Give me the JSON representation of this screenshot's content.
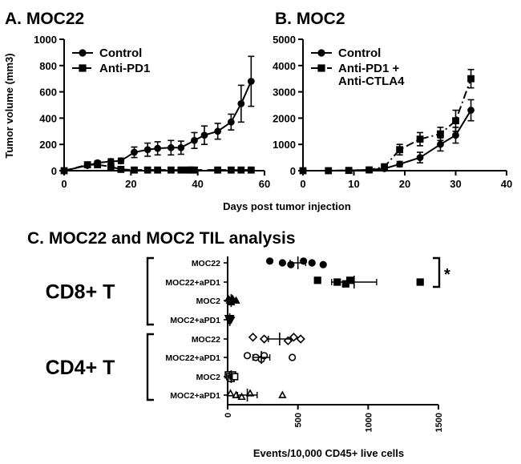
{
  "chart_data": [
    {
      "panel": "A",
      "type": "line",
      "title": "A. MOC22",
      "ylabel": "Tumor volume (mm3)",
      "xlim": [
        0,
        60
      ],
      "ylim": [
        0,
        1000
      ],
      "xticks": [
        0,
        20,
        40,
        60
      ],
      "yticks": [
        0,
        200,
        400,
        600,
        800,
        1000
      ],
      "legend_position": "top-left",
      "series": [
        {
          "name": "Control",
          "style": "solid",
          "marker": "circle",
          "x": [
            0,
            7,
            10,
            14,
            17,
            21,
            25,
            28,
            32,
            35,
            39,
            42,
            46,
            50,
            53,
            56
          ],
          "y": [
            0,
            40,
            60,
            70,
            75,
            140,
            160,
            170,
            175,
            175,
            230,
            270,
            300,
            370,
            510,
            680
          ],
          "err": [
            0,
            15,
            15,
            20,
            20,
            40,
            50,
            50,
            55,
            50,
            60,
            70,
            60,
            60,
            140,
            190
          ]
        },
        {
          "name": "Anti-PD1",
          "style": "dashed",
          "marker": "square",
          "x": [
            0,
            7,
            10,
            14,
            17,
            21,
            25,
            28,
            32,
            35,
            37,
            38,
            39,
            46,
            50,
            53,
            56
          ],
          "y": [
            0,
            45,
            45,
            30,
            10,
            5,
            5,
            5,
            5,
            5,
            5,
            5,
            5,
            5,
            5,
            5,
            5
          ],
          "err": [
            0,
            10,
            10,
            10,
            5,
            3,
            2,
            2,
            2,
            2,
            2,
            2,
            2,
            2,
            2,
            2,
            2
          ]
        }
      ]
    },
    {
      "panel": "B",
      "type": "line",
      "title": "B. MOC2",
      "xlim": [
        0,
        40
      ],
      "ylim": [
        0,
        5000
      ],
      "xticks": [
        0,
        10,
        20,
        30,
        40
      ],
      "yticks": [
        0,
        1000,
        2000,
        3000,
        4000,
        5000
      ],
      "legend_position": "top-left",
      "series": [
        {
          "name": "Control",
          "style": "solid",
          "marker": "circle",
          "x": [
            0,
            5,
            9,
            13,
            16,
            19,
            23,
            27,
            30,
            33
          ],
          "y": [
            0,
            0,
            10,
            30,
            80,
            250,
            500,
            1000,
            1350,
            2300
          ],
          "err": [
            0,
            0,
            5,
            10,
            30,
            100,
            200,
            250,
            300,
            400
          ]
        },
        {
          "name": "Anti-PD1 + Anti-CTLA4",
          "style": "dashdot",
          "marker": "square",
          "x": [
            0,
            5,
            9,
            13,
            16,
            19,
            23,
            27,
            30,
            33
          ],
          "y": [
            0,
            0,
            10,
            30,
            150,
            800,
            1200,
            1400,
            1900,
            3500
          ],
          "err": [
            0,
            0,
            5,
            10,
            80,
            200,
            250,
            250,
            400,
            350
          ]
        }
      ]
    },
    {
      "panel": "C",
      "type": "scatter",
      "title": "C. MOC22 and MOC2 TIL analysis",
      "xlabel": "Events/10,000 CD45+ live cells",
      "xlim": [
        0,
        1500
      ],
      "xticks": [
        0,
        500,
        1000,
        1500
      ],
      "groups": [
        {
          "label": "CD8+ T",
          "significance": "*",
          "categories": [
            "MOC22",
            "MOC22+aPD1",
            "MOC2",
            "MOC2+aPD1"
          ]
        },
        {
          "label": "CD4+ T",
          "categories": [
            "MOC22",
            "MOC22+aPD1",
            "MOC2",
            "MOC2+aPD1"
          ]
        }
      ],
      "rows": [
        {
          "group": "CD8+ T",
          "category": "MOC22",
          "marker": "circle-filled",
          "points": [
            300,
            390,
            450,
            540,
            600,
            680
          ],
          "mean": 500,
          "sem": 55
        },
        {
          "group": "CD8+ T",
          "category": "MOC22+aPD1",
          "marker": "square-filled",
          "points": [
            640,
            780,
            840,
            870,
            1370
          ],
          "mean": 900,
          "sem": 160
        },
        {
          "group": "CD8+ T",
          "category": "MOC2",
          "marker": "triangle-filled",
          "points": [
            5,
            15,
            25,
            35,
            60
          ],
          "mean": 25,
          "sem": 10
        },
        {
          "group": "CD8+ T",
          "category": "MOC2+aPD1",
          "marker": "triangle-down-filled",
          "points": [
            5,
            10,
            15,
            20,
            25
          ],
          "mean": 15,
          "sem": 5
        },
        {
          "group": "CD4+ T",
          "category": "MOC22",
          "marker": "diamond-open",
          "points": [
            180,
            260,
            430,
            470,
            520
          ],
          "mean": 370,
          "sem": 80
        },
        {
          "group": "CD4+ T",
          "category": "MOC22+aPD1",
          "marker": "circle-open",
          "points": [
            140,
            200,
            240,
            260,
            460
          ],
          "mean": 240,
          "sem": 60
        },
        {
          "group": "CD4+ T",
          "category": "MOC2",
          "marker": "square-open",
          "points": [
            5,
            15,
            25,
            35,
            50
          ],
          "mean": 25,
          "sem": 8
        },
        {
          "group": "CD4+ T",
          "category": "MOC2+aPD1",
          "marker": "triangle-open",
          "points": [
            20,
            60,
            100,
            160,
            390
          ],
          "mean": 140,
          "sem": 70
        }
      ]
    }
  ],
  "shared_xlabel_top": "Days post tumor injection",
  "colors": {
    "ink": "#000000",
    "background": "#ffffff"
  }
}
